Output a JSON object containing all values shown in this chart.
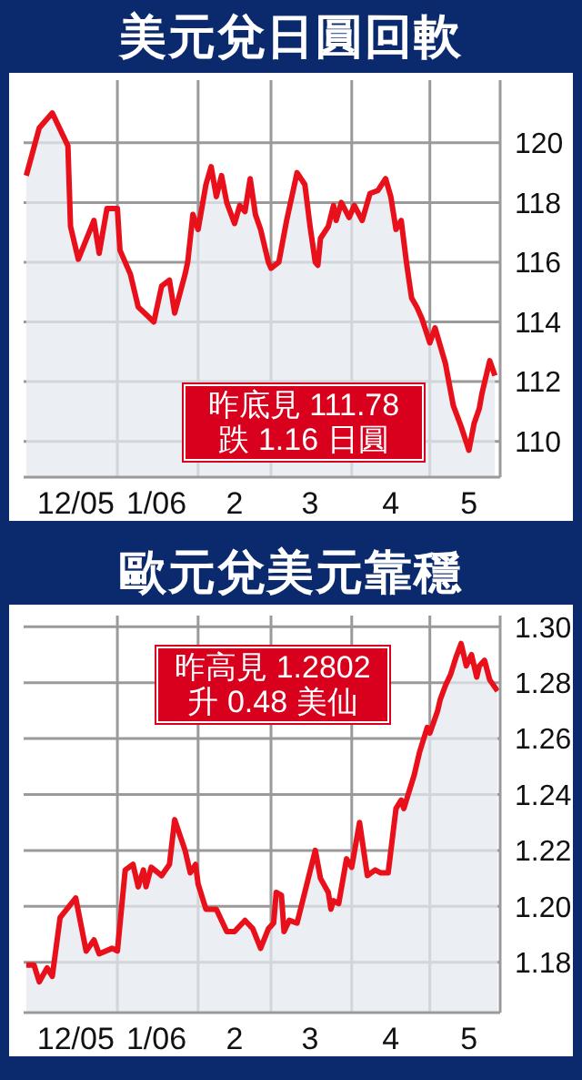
{
  "chart_data": [
    {
      "type": "area",
      "title": "美元兌日圓回軟",
      "annotations": [
        "昨底見 111.78",
        "跌 1.16 日圓"
      ],
      "x": [
        "2005-11-27",
        "2005-12-02",
        "2005-12-07",
        "2005-12-13",
        "2005-12-14",
        "2005-12-17",
        "2005-12-23",
        "2005-12-25",
        "2005-12-28",
        "2006-01-01",
        "2006-01-02",
        "2006-01-06",
        "2006-01-09",
        "2006-01-15",
        "2006-01-18",
        "2006-01-21",
        "2006-01-23",
        "2006-01-27",
        "2006-01-28",
        "2006-01-30",
        "2006-02-01",
        "2006-02-04",
        "2006-02-06",
        "2006-02-08",
        "2006-02-10",
        "2006-02-12",
        "2006-02-15",
        "2006-02-17",
        "2006-02-19",
        "2006-02-21",
        "2006-02-23",
        "2006-02-25",
        "2006-02-28",
        "2006-03-01",
        "2006-03-04",
        "2006-03-07",
        "2006-03-09",
        "2006-03-11",
        "2006-03-14",
        "2006-03-16",
        "2006-03-18",
        "2006-03-19",
        "2006-03-20",
        "2006-03-23",
        "2006-03-25",
        "2006-03-26",
        "2006-03-28",
        "2006-03-31",
        "2006-04-02",
        "2006-04-05",
        "2006-04-08",
        "2006-04-11",
        "2006-04-14",
        "2006-04-16",
        "2006-04-18",
        "2006-04-20",
        "2006-04-22",
        "2006-04-24",
        "2006-04-26",
        "2006-04-28",
        "2006-05-01",
        "2006-05-03",
        "2006-05-07",
        "2006-05-10",
        "2006-05-13",
        "2006-05-16",
        "2006-05-18",
        "2006-05-20",
        "2006-05-21",
        "2006-05-24",
        "2006-05-26"
      ],
      "series": [
        {
          "color": "#e8101a",
          "values": [
            118.9,
            120.5,
            121.0,
            119.9,
            117.2,
            116.1,
            117.4,
            116.3,
            117.8,
            117.8,
            116.4,
            115.6,
            114.5,
            114.0,
            115.2,
            115.4,
            114.3,
            115.6,
            116.0,
            117.6,
            117.1,
            118.6,
            119.2,
            118.2,
            118.9,
            118.0,
            117.3,
            117.9,
            117.7,
            118.8,
            117.6,
            117.1,
            116.0,
            115.8,
            116.0,
            117.4,
            118.2,
            119.0,
            118.6,
            117.2,
            116.0,
            115.9,
            116.8,
            117.2,
            117.9,
            117.4,
            118.0,
            117.5,
            117.9,
            117.4,
            118.3,
            118.4,
            118.8,
            118.2,
            117.1,
            117.4,
            116.0,
            114.8,
            114.5,
            114.1,
            113.3,
            113.8,
            112.6,
            111.2,
            110.5,
            109.7,
            110.6,
            111.1,
            111.6,
            112.7,
            112.2
          ]
        }
      ],
      "xlim": [
        "2005-11-26",
        "2006-05-28"
      ],
      "xticks": [
        {
          "value": "2005-12-16",
          "label": "12/05"
        },
        {
          "value": "2006-01-01",
          "label": null
        },
        {
          "value": "2006-01-16",
          "label": "1/06"
        },
        {
          "value": "2006-02-01",
          "label": null
        },
        {
          "value": "2006-02-15",
          "label": "2"
        },
        {
          "value": "2006-03-01",
          "label": null
        },
        {
          "value": "2006-03-16",
          "label": "3"
        },
        {
          "value": "2006-04-01",
          "label": null
        },
        {
          "value": "2006-04-16",
          "label": "4"
        },
        {
          "value": "2006-05-01",
          "label": null
        },
        {
          "value": "2006-05-16",
          "label": "5"
        }
      ],
      "ylim": [
        108.8,
        122.1
      ],
      "yticks": [
        110,
        112,
        114,
        116,
        118,
        120
      ],
      "grid": true
    },
    {
      "type": "area",
      "title": "歐元兌美元靠穩",
      "annotations": [
        "昨高見 1.2802",
        "升 0.48 美仙"
      ],
      "x": [
        "2005-11-27",
        "2005-11-30",
        "2005-12-02",
        "2005-12-05",
        "2005-12-07",
        "2005-12-10",
        "2005-12-16",
        "2005-12-20",
        "2005-12-23",
        "2005-12-25",
        "2005-12-30",
        "2006-01-01",
        "2006-01-04",
        "2006-01-07",
        "2006-01-09",
        "2006-01-11",
        "2006-01-12",
        "2006-01-14",
        "2006-01-18",
        "2006-01-21",
        "2006-01-23",
        "2006-01-27",
        "2006-01-29",
        "2006-01-31",
        "2006-02-01",
        "2006-02-04",
        "2006-02-08",
        "2006-02-12",
        "2006-02-15",
        "2006-02-19",
        "2006-02-22",
        "2006-02-25",
        "2006-02-28",
        "2006-03-02",
        "2006-03-03",
        "2006-03-05",
        "2006-03-06",
        "2006-03-08",
        "2006-03-11",
        "2006-03-18",
        "2006-03-20",
        "2006-03-23",
        "2006-03-24",
        "2006-03-25",
        "2006-03-27",
        "2006-03-30",
        "2006-04-01",
        "2006-04-04",
        "2006-04-07",
        "2006-04-10",
        "2006-04-12",
        "2006-04-15",
        "2006-04-18",
        "2006-04-20",
        "2006-04-21",
        "2006-04-25",
        "2006-04-27",
        "2006-04-30",
        "2006-05-01",
        "2006-05-04",
        "2006-05-05",
        "2006-05-07",
        "2006-05-09",
        "2006-05-11",
        "2006-05-13",
        "2006-05-15",
        "2006-05-17",
        "2006-05-19",
        "2006-05-20",
        "2006-05-22",
        "2006-05-24",
        "2006-05-27"
      ],
      "series": [
        {
          "color": "#e8101a",
          "values": [
            1.179,
            1.179,
            1.173,
            1.178,
            1.175,
            1.196,
            1.203,
            1.184,
            1.188,
            1.183,
            1.185,
            1.184,
            1.213,
            1.215,
            1.207,
            1.213,
            1.207,
            1.214,
            1.211,
            1.215,
            1.231,
            1.22,
            1.212,
            1.215,
            1.208,
            1.199,
            1.199,
            1.191,
            1.191,
            1.195,
            1.192,
            1.185,
            1.192,
            1.194,
            1.205,
            1.204,
            1.191,
            1.195,
            1.194,
            1.22,
            1.21,
            1.205,
            1.199,
            1.202,
            1.201,
            1.217,
            1.214,
            1.23,
            1.211,
            1.213,
            1.212,
            1.212,
            1.235,
            1.238,
            1.235,
            1.247,
            1.255,
            1.264,
            1.262,
            1.27,
            1.274,
            1.279,
            1.283,
            1.289,
            1.294,
            1.286,
            1.29,
            1.282,
            1.286,
            1.288,
            1.281,
            1.277
          ]
        }
      ],
      "xlim": [
        "2005-11-26",
        "2006-05-28"
      ],
      "xticks": [
        {
          "value": "2005-12-16",
          "label": "12/05"
        },
        {
          "value": "2006-01-01",
          "label": null
        },
        {
          "value": "2006-01-16",
          "label": "1/06"
        },
        {
          "value": "2006-02-01",
          "label": null
        },
        {
          "value": "2006-02-15",
          "label": "2"
        },
        {
          "value": "2006-03-01",
          "label": null
        },
        {
          "value": "2006-03-16",
          "label": "3"
        },
        {
          "value": "2006-04-01",
          "label": null
        },
        {
          "value": "2006-04-16",
          "label": "4"
        },
        {
          "value": "2006-05-01",
          "label": null
        },
        {
          "value": "2006-05-16",
          "label": "5"
        }
      ],
      "ylim": [
        1.162,
        1.304
      ],
      "yticks": [
        1.18,
        {
          "value": 1.2,
          "label": "1.20"
        },
        1.22,
        1.24,
        1.26,
        1.28,
        {
          "value": 1.3,
          "label": "1.30"
        }
      ],
      "grid": true
    }
  ]
}
